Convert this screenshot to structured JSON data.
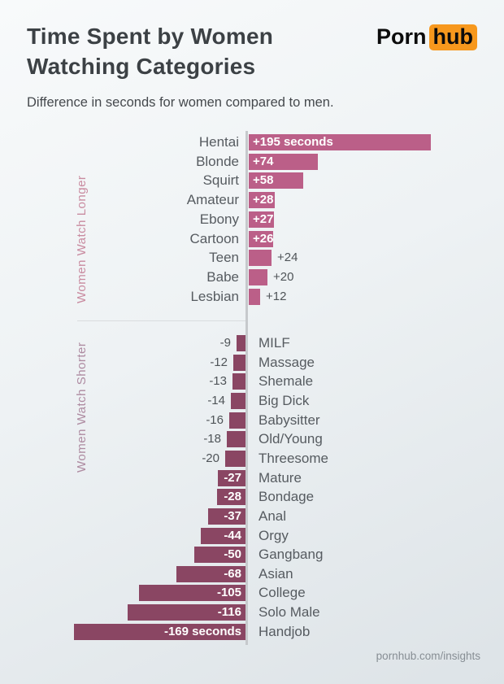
{
  "header": {
    "title": "Time Spent by Women Watching Categories",
    "logo": {
      "part1": "Porn",
      "part2": "hub"
    }
  },
  "subtitle": "Difference in seconds for women compared to men.",
  "footer": "pornhub.com/insights",
  "colors": {
    "positive_bar": "#bb5f88",
    "negative_bar": "#8a4663",
    "longer_label": "#c98ba0",
    "shorter_label": "#ae8ba1",
    "logo_orange": "#f7981d",
    "title_text": "#3c4145",
    "category_text": "#565b60"
  },
  "chart_data": {
    "type": "bar",
    "orientation": "horizontal",
    "title": "Time Spent by Women Watching Categories",
    "subtitle": "Difference in seconds for women compared to men.",
    "unit": "seconds",
    "series": [
      {
        "name": "Women Watch Longer",
        "items": [
          {
            "category": "Hentai",
            "value": 195,
            "label": "+195 seconds"
          },
          {
            "category": "Blonde",
            "value": 74,
            "label": "+74"
          },
          {
            "category": "Squirt",
            "value": 58,
            "label": "+58"
          },
          {
            "category": "Amateur",
            "value": 28,
            "label": "+28"
          },
          {
            "category": "Ebony",
            "value": 27,
            "label": "+27"
          },
          {
            "category": "Cartoon",
            "value": 26,
            "label": "+26"
          },
          {
            "category": "Teen",
            "value": 24,
            "label": "+24"
          },
          {
            "category": "Babe",
            "value": 20,
            "label": "+20"
          },
          {
            "category": "Lesbian",
            "value": 12,
            "label": "+12"
          }
        ]
      },
      {
        "name": "Women Watch Shorter",
        "items": [
          {
            "category": "MILF",
            "value": -9,
            "label": "-9"
          },
          {
            "category": "Massage",
            "value": -12,
            "label": "-12"
          },
          {
            "category": "Shemale",
            "value": -13,
            "label": "-13"
          },
          {
            "category": "Big Dick",
            "value": -14,
            "label": "-14"
          },
          {
            "category": "Babysitter",
            "value": -16,
            "label": "-16"
          },
          {
            "category": "Old/Young",
            "value": -18,
            "label": "-18"
          },
          {
            "category": "Threesome",
            "value": -20,
            "label": "-20"
          },
          {
            "category": "Mature",
            "value": -27,
            "label": "-27"
          },
          {
            "category": "Bondage",
            "value": -28,
            "label": "-28"
          },
          {
            "category": "Anal",
            "value": -37,
            "label": "-37"
          },
          {
            "category": "Orgy",
            "value": -44,
            "label": "-44"
          },
          {
            "category": "Gangbang",
            "value": -50,
            "label": "-50"
          },
          {
            "category": "Asian",
            "value": -68,
            "label": "-68"
          },
          {
            "category": "College",
            "value": -105,
            "label": "-105"
          },
          {
            "category": "Solo Male",
            "value": -116,
            "label": "-116"
          },
          {
            "category": "Handjob",
            "value": -169,
            "label": "-169 seconds"
          }
        ]
      }
    ]
  }
}
